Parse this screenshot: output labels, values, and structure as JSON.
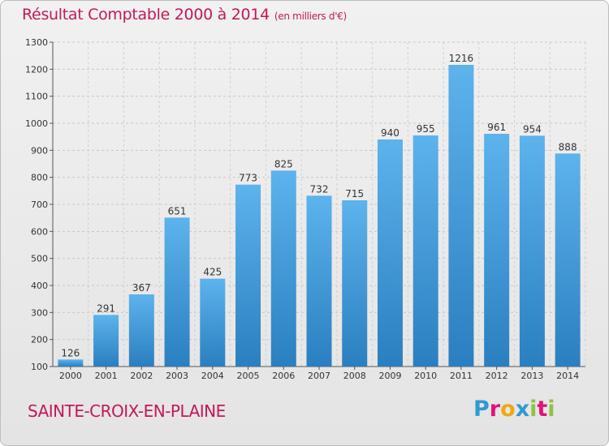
{
  "page": {
    "title": "Résultat Comptable 2000 à 2014",
    "unit_note": "(en milliers d'€)",
    "place": "SAINTE-CROIX-EN-PLAINE",
    "logo_letters": [
      "P",
      "r",
      "o",
      "x",
      "i",
      "t",
      "i"
    ],
    "logo_colors": [
      "#2e9ad3",
      "#e2127a",
      "#f0a713",
      "#2e9ad3",
      "#8bc53f",
      "#e2127a",
      "#8bc53f"
    ]
  },
  "chart_data": {
    "type": "bar",
    "title": "Résultat Comptable 2000 à 2014",
    "subtitle": "(en milliers d'€)",
    "categories": [
      "2000",
      "2001",
      "2002",
      "2003",
      "2004",
      "2005",
      "2006",
      "2007",
      "2008",
      "2009",
      "2010",
      "2011",
      "2012",
      "2013",
      "2014"
    ],
    "values": [
      126,
      291,
      367,
      651,
      425,
      773,
      825,
      732,
      715,
      940,
      955,
      1216,
      961,
      954,
      888
    ],
    "ylim": [
      100,
      1300
    ],
    "yticks": [
      100,
      200,
      300,
      400,
      500,
      600,
      700,
      800,
      900,
      1000,
      1100,
      1200,
      1300
    ],
    "xlabel": "",
    "ylabel": "",
    "grid": true,
    "bar_color": "#4a9fde"
  }
}
